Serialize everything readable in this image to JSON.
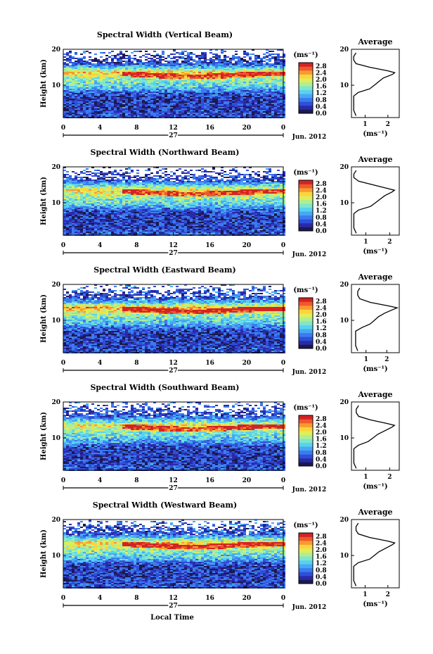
{
  "figure": {
    "xlabel": "Local Time"
  },
  "scale": {
    "colors": [
      "#1a1a50",
      "#2a2aa8",
      "#2f4fd8",
      "#3b7bef",
      "#47a8f5",
      "#58d2ee",
      "#7fe6cb",
      "#b1ee92",
      "#e0ee58",
      "#fbd53c",
      "#f99a30",
      "#ef5a2c",
      "#d32424"
    ]
  },
  "chart_data": [
    {
      "type": "heatmap",
      "title": "Spectral Width (Vertical Beam)",
      "ylabel": "Height (km)",
      "x_ticks": [
        "0",
        "4",
        "8",
        "12",
        "16",
        "20",
        "0"
      ],
      "x_range": [
        0,
        24
      ],
      "y_ticks": [
        "20",
        "10"
      ],
      "y_range": [
        1,
        20
      ],
      "date_day": "27",
      "date_label": "Jun. 2012",
      "colorbar": {
        "unit": "(ms⁻¹)",
        "ticks": [
          "2.8",
          "2.4",
          "2.0",
          "1.6",
          "1.2",
          "0.8",
          "0.4",
          "0.0"
        ],
        "range": [
          0,
          3.0
        ]
      },
      "profile": {
        "title": "Average",
        "xlabel": "(ms⁻¹)",
        "x_ticks": [
          "1",
          "2"
        ],
        "x_range": [
          0.4,
          2.5
        ],
        "y_ticks": [
          "20",
          "10"
        ],
        "y_range": [
          1,
          20
        ],
        "heights": [
          1.5,
          3,
          5,
          7,
          8,
          9,
          10,
          11,
          12,
          13,
          13.5,
          14,
          15,
          16,
          17,
          18,
          19
        ],
        "values": [
          0.6,
          0.5,
          0.5,
          0.5,
          0.7,
          1.2,
          1.4,
          1.6,
          1.8,
          2.2,
          2.3,
          2.0,
          1.2,
          0.6,
          0.5,
          0.5,
          0.6
        ]
      }
    },
    {
      "type": "heatmap",
      "title": "Spectral Width (Northward Beam)",
      "ylabel": "Height (km)",
      "x_ticks": [
        "0",
        "4",
        "8",
        "12",
        "16",
        "20",
        "0"
      ],
      "x_range": [
        0,
        24
      ],
      "y_ticks": [
        "20",
        "10"
      ],
      "y_range": [
        1,
        20
      ],
      "date_day": "27",
      "date_label": "Jun. 2012",
      "colorbar": {
        "unit": "(ms⁻¹)",
        "ticks": [
          "2.8",
          "2.4",
          "2.0",
          "1.6",
          "1.2",
          "0.8",
          "0.4",
          "0.0"
        ],
        "range": [
          0,
          3.0
        ]
      },
      "profile": {
        "title": "Average",
        "xlabel": "(ms⁻¹)",
        "x_ticks": [
          "1",
          "2"
        ],
        "x_range": [
          0.4,
          2.4
        ],
        "y_ticks": [
          "20",
          "10"
        ],
        "y_range": [
          1,
          20
        ],
        "heights": [
          1.5,
          3,
          5,
          7,
          8,
          9,
          10,
          11,
          12,
          13,
          13.5,
          14,
          15,
          16,
          17,
          18,
          19
        ],
        "values": [
          0.6,
          0.5,
          0.5,
          0.5,
          0.7,
          1.2,
          1.4,
          1.6,
          1.8,
          2.1,
          2.2,
          1.9,
          1.3,
          0.7,
          0.5,
          0.5,
          0.6
        ]
      }
    },
    {
      "type": "heatmap",
      "title": "Spectral Width (Eastward Beam)",
      "ylabel": "Height (km)",
      "x_ticks": [
        "0",
        "4",
        "8",
        "12",
        "16",
        "20",
        "0"
      ],
      "x_range": [
        0,
        24
      ],
      "y_ticks": [
        "20",
        "10"
      ],
      "y_range": [
        1,
        20
      ],
      "date_day": "27",
      "date_label": "Jun. 2012",
      "colorbar": {
        "unit": "(ms⁻¹)",
        "ticks": [
          "2.8",
          "2.4",
          "2.0",
          "1.6",
          "1.2",
          "0.8",
          "0.4",
          "0.0"
        ],
        "range": [
          0,
          3.0
        ]
      },
      "profile": {
        "title": "Average",
        "xlabel": "(ms⁻¹)",
        "x_ticks": [
          "1",
          "2"
        ],
        "x_range": [
          0.3,
          2.6
        ],
        "y_ticks": [
          "20",
          "10"
        ],
        "y_range": [
          1,
          20
        ],
        "heights": [
          1.5,
          3,
          5,
          7,
          8,
          9,
          10,
          11,
          12,
          13,
          13.5,
          14,
          15,
          16,
          17,
          18,
          19
        ],
        "values": [
          0.6,
          0.5,
          0.5,
          0.5,
          0.8,
          1.2,
          1.4,
          1.6,
          1.9,
          2.3,
          2.5,
          2.1,
          1.2,
          0.7,
          0.6,
          0.6,
          0.7
        ]
      }
    },
    {
      "type": "heatmap",
      "title": "Spectral Width (Southward Beam)",
      "ylabel": "Height (km)",
      "x_ticks": [
        "0",
        "4",
        "8",
        "12",
        "16",
        "20",
        "0"
      ],
      "x_range": [
        0,
        24
      ],
      "y_ticks": [
        "20",
        "10"
      ],
      "y_range": [
        1,
        20
      ],
      "date_day": "27",
      "date_label": "Jun. 2012",
      "colorbar": {
        "unit": "(ms⁻¹)",
        "ticks": [
          "2.8",
          "2.4",
          "2.0",
          "1.6",
          "1.2",
          "0.8",
          "0.4",
          "0.0"
        ],
        "range": [
          0,
          3.0
        ]
      },
      "profile": {
        "title": "Average",
        "xlabel": "(ms⁻¹)",
        "x_ticks": [
          "1",
          "2"
        ],
        "x_range": [
          0.4,
          2.4
        ],
        "y_ticks": [
          "20",
          "10"
        ],
        "y_range": [
          1,
          20
        ],
        "heights": [
          1.5,
          3,
          5,
          7,
          8,
          9,
          10,
          11,
          12,
          13,
          13.5,
          14,
          15,
          16,
          17,
          18,
          19
        ],
        "values": [
          0.6,
          0.5,
          0.5,
          0.5,
          0.7,
          1.1,
          1.3,
          1.5,
          1.8,
          2.1,
          2.2,
          1.9,
          1.2,
          0.7,
          0.6,
          0.6,
          0.7
        ]
      }
    },
    {
      "type": "heatmap",
      "title": "Spectral Width (Westward Beam)",
      "ylabel": "Height (km)",
      "x_ticks": [
        "0",
        "4",
        "8",
        "12",
        "16",
        "20",
        "0"
      ],
      "x_range": [
        0,
        24
      ],
      "y_ticks": [
        "20",
        "10"
      ],
      "y_range": [
        1,
        20
      ],
      "date_day": "27",
      "date_label": "Jun. 2012",
      "colorbar": {
        "unit": "(ms⁻¹)",
        "ticks": [
          "2.8",
          "2.4",
          "2.0",
          "1.6",
          "1.2",
          "0.8",
          "0.4",
          "0.0"
        ],
        "range": [
          0,
          3.0
        ]
      },
      "profile": {
        "title": "Average",
        "xlabel": "(ms⁻¹)",
        "x_ticks": [
          "1",
          "2"
        ],
        "x_range": [
          0.4,
          2.5
        ],
        "y_ticks": [
          "20",
          "10"
        ],
        "y_range": [
          1,
          20
        ],
        "heights": [
          1.5,
          3,
          5,
          7,
          8,
          9,
          10,
          11,
          12,
          13,
          13.5,
          14,
          15,
          16,
          17,
          18,
          19
        ],
        "values": [
          0.6,
          0.5,
          0.5,
          0.5,
          0.7,
          1.2,
          1.4,
          1.6,
          1.9,
          2.2,
          2.3,
          2.0,
          1.2,
          0.7,
          0.6,
          0.6,
          0.7
        ]
      }
    }
  ]
}
